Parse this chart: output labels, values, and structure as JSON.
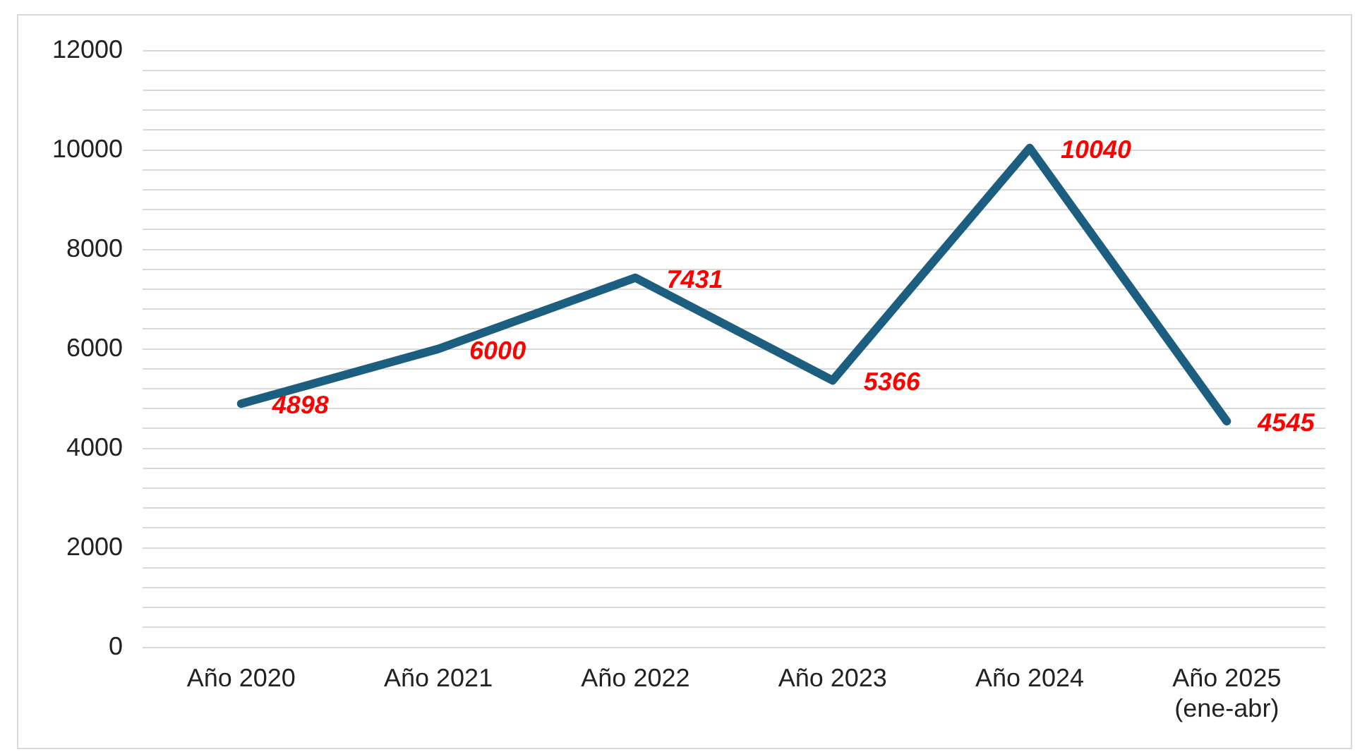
{
  "chart_data": {
    "type": "line",
    "categories": [
      "Año 2020",
      "Año 2021",
      "Año 2022",
      "Año 2023",
      "Año 2024",
      "Año 2025\n(ene-abr)"
    ],
    "series": [
      {
        "color": "#1b5e80",
        "values": [
          4898,
          6000,
          7431,
          5366,
          10040,
          4545
        ]
      }
    ],
    "ylim": [
      0,
      12000
    ],
    "yticks": [
      0,
      {
        "value": 400,
        "label": null
      },
      {
        "value": 800,
        "label": null
      },
      {
        "value": 1200,
        "label": null
      },
      {
        "value": 1600,
        "label": null
      },
      2000,
      {
        "value": 2400,
        "label": null
      },
      {
        "value": 2800,
        "label": null
      },
      {
        "value": 3200,
        "label": null
      },
      {
        "value": 3600,
        "label": null
      },
      4000,
      {
        "value": 4400,
        "label": null
      },
      {
        "value": 4800,
        "label": null
      },
      {
        "value": 5200,
        "label": null
      },
      {
        "value": 5600,
        "label": null
      },
      6000,
      {
        "value": 6400,
        "label": null
      },
      {
        "value": 6800,
        "label": null
      },
      {
        "value": 7200,
        "label": null
      },
      {
        "value": 7600,
        "label": null
      },
      8000,
      {
        "value": 8400,
        "label": null
      },
      {
        "value": 8800,
        "label": null
      },
      {
        "value": 9200,
        "label": null
      },
      {
        "value": 9600,
        "label": null
      },
      10000,
      {
        "value": 10400,
        "label": null
      },
      {
        "value": 10800,
        "label": null
      },
      {
        "value": 11200,
        "label": null
      },
      {
        "value": 11600,
        "label": null
      },
      12000
    ],
    "grid": "y",
    "legend": false,
    "marker": "none",
    "line_style": "solid",
    "data_labels": true
  }
}
